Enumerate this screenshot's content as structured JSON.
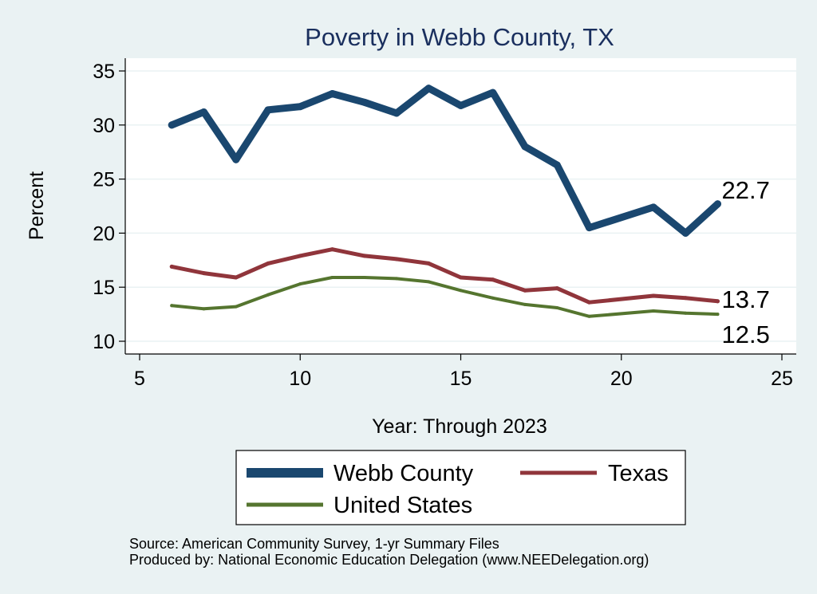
{
  "chart_data": {
    "type": "line",
    "title": "Poverty in Webb County, TX",
    "xlabel": "Year: Through 2023",
    "ylabel": "Percent",
    "xlim": [
      5,
      25
    ],
    "ylim": [
      10,
      35
    ],
    "xticks": [
      "5",
      "10",
      "15",
      "20",
      "25"
    ],
    "yticks": [
      "10",
      "15",
      "20",
      "25",
      "30",
      "35"
    ],
    "grid": "horizontal",
    "legend_position": "bottom",
    "series": [
      {
        "name": "Webb County",
        "color": "#1a476f",
        "x": [
          6,
          7,
          8,
          9,
          10,
          11,
          12,
          13,
          14,
          15,
          16,
          17,
          18,
          19,
          21,
          22,
          23
        ],
        "values": [
          30.0,
          31.2,
          26.8,
          31.4,
          31.7,
          32.9,
          32.1,
          31.1,
          33.4,
          31.8,
          33.0,
          28.0,
          26.3,
          20.5,
          22.4,
          20.0,
          22.7
        ],
        "end_label": "22.7"
      },
      {
        "name": "Texas",
        "color": "#90353b",
        "x": [
          6,
          7,
          8,
          9,
          10,
          11,
          12,
          13,
          14,
          15,
          16,
          17,
          18,
          19,
          21,
          22,
          23
        ],
        "values": [
          16.9,
          16.3,
          15.9,
          17.2,
          17.9,
          18.5,
          17.9,
          17.6,
          17.2,
          15.9,
          15.7,
          14.7,
          14.9,
          13.6,
          14.2,
          14.0,
          13.7
        ],
        "end_label": "13.7"
      },
      {
        "name": "United States",
        "color": "#55752f",
        "x": [
          6,
          7,
          8,
          9,
          10,
          11,
          12,
          13,
          14,
          15,
          16,
          17,
          18,
          19,
          21,
          22,
          23
        ],
        "values": [
          13.3,
          13.0,
          13.2,
          14.3,
          15.3,
          15.9,
          15.9,
          15.8,
          15.5,
          14.7,
          14.0,
          13.4,
          13.1,
          12.3,
          12.8,
          12.6,
          12.5
        ],
        "end_label": "12.5"
      }
    ],
    "source_note": "Source: American Community Survey, 1-yr Summary Files",
    "producer_note": "Produced by: National Economic Education Delegation (www.NEEDelegation.org)"
  }
}
